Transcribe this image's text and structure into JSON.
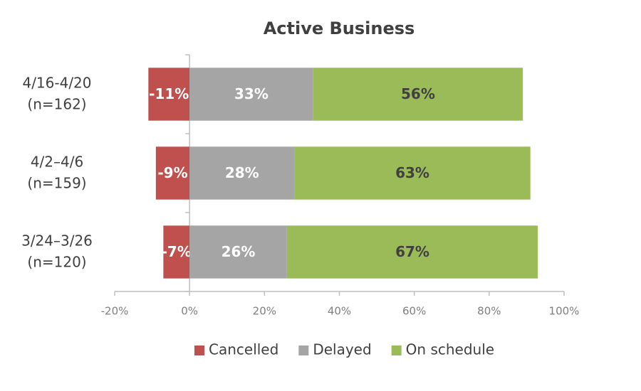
{
  "chart_data": {
    "type": "bar",
    "orientation": "horizontal",
    "stacked": true,
    "title": "Active Business",
    "categories": [
      [
        "4/16-4/20",
        "(n=162)"
      ],
      [
        "4/2–4/6",
        "(n=159)"
      ],
      [
        "3/24–3/26",
        "(n=120)"
      ]
    ],
    "series": [
      {
        "name": "Cancelled",
        "color": "#c0504d",
        "values": [
          -11,
          -9,
          -7
        ],
        "value_labels": [
          "-11%",
          "-9%",
          "-7%"
        ]
      },
      {
        "name": "Delayed",
        "color": "#a5a5a5",
        "values": [
          33,
          28,
          26
        ],
        "value_labels": [
          "33%",
          "28%",
          "26%"
        ]
      },
      {
        "name": "On schedule",
        "color": "#9bbb59",
        "values": [
          56,
          63,
          67
        ],
        "value_labels": [
          "56%",
          "63%",
          "67%"
        ]
      }
    ],
    "xlim": [
      -20,
      100
    ],
    "xticks": [
      {
        "value": -20,
        "label": "-20%"
      },
      {
        "value": 0,
        "label": "0%"
      },
      {
        "value": 20,
        "label": "20%"
      },
      {
        "value": 40,
        "label": "40%"
      },
      {
        "value": 60,
        "label": "60%"
      },
      {
        "value": 80,
        "label": "80%"
      },
      {
        "value": 100,
        "label": "100%"
      }
    ],
    "legend": "bottom"
  }
}
